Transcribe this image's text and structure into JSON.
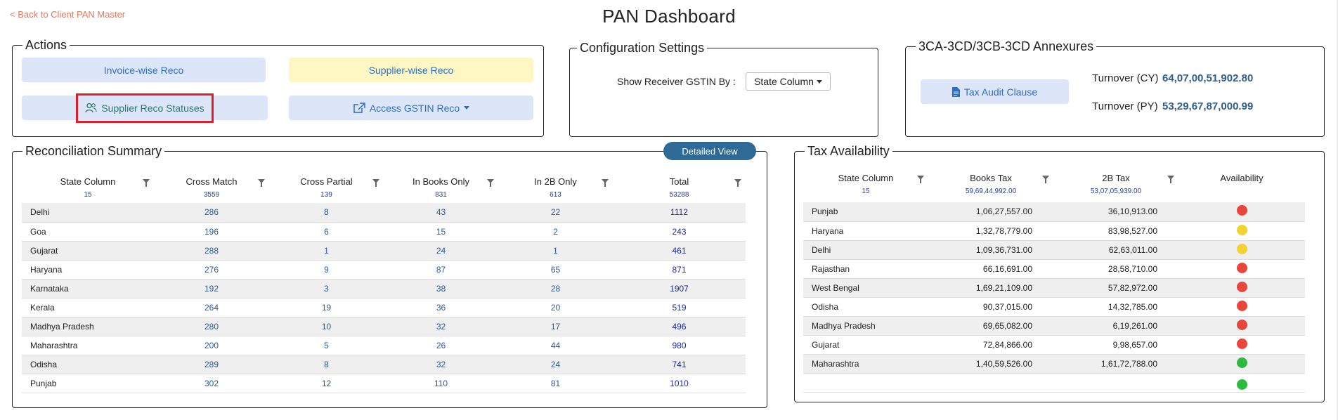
{
  "header": {
    "back_label": "< Back to Client PAN Master",
    "title": "PAN Dashboard"
  },
  "actions": {
    "legend": "Actions",
    "invoice_reco": "Invoice-wise Reco",
    "supplier_reco": "Supplier-wise Reco",
    "supplier_statuses": "Supplier Reco Statuses",
    "access_gstin": "Access GSTIN Reco"
  },
  "config": {
    "legend": "Configuration Settings",
    "label": "Show Receiver GSTIN By :",
    "selected": "State Column"
  },
  "annexures": {
    "legend": "3CA-3CD/3CB-3CD Annexures",
    "button": "Tax Audit Clause",
    "cy_label": "Turnover (CY)",
    "cy_value": "64,07,00,51,902.80",
    "py_label": "Turnover (PY)",
    "py_value": "53,29,67,87,000.99"
  },
  "reco": {
    "legend": "Reconciliation Summary",
    "detailed_view": "Detailed View",
    "columns": [
      {
        "label": "State Column",
        "count": "15"
      },
      {
        "label": "Cross Match",
        "count": "3559"
      },
      {
        "label": "Cross Partial",
        "count": "139"
      },
      {
        "label": "In Books Only",
        "count": "831"
      },
      {
        "label": "In 2B Only",
        "count": "613"
      },
      {
        "label": "Total",
        "count": "53288"
      }
    ],
    "rows": [
      [
        "Delhi",
        "286",
        "8",
        "43",
        "22",
        "1112"
      ],
      [
        "Goa",
        "196",
        "6",
        "15",
        "2",
        "243"
      ],
      [
        "Gujarat",
        "288",
        "1",
        "24",
        "1",
        "461"
      ],
      [
        "Haryana",
        "276",
        "9",
        "87",
        "65",
        "871"
      ],
      [
        "Karnataka",
        "192",
        "3",
        "38",
        "28",
        "1907"
      ],
      [
        "Kerala",
        "264",
        "19",
        "36",
        "20",
        "519"
      ],
      [
        "Madhya Pradesh",
        "280",
        "10",
        "32",
        "17",
        "496"
      ],
      [
        "Maharashtra",
        "200",
        "5",
        "26",
        "44",
        "980"
      ],
      [
        "Odisha",
        "289",
        "8",
        "32",
        "24",
        "741"
      ],
      [
        "Punjab",
        "302",
        "12",
        "110",
        "81",
        "1010"
      ]
    ]
  },
  "tax": {
    "legend": "Tax Availability",
    "columns": [
      {
        "label": "State Column",
        "count": "15"
      },
      {
        "label": "Books Tax",
        "count": "59,69,44,992.00"
      },
      {
        "label": "2B Tax",
        "count": "53,07,05,939.00"
      },
      {
        "label": "Availability",
        "count": ""
      }
    ],
    "rows": [
      {
        "state": "Punjab",
        "books": "1,06,27,557.00",
        "b2": "36,10,913.00",
        "status": "red"
      },
      {
        "state": "Haryana",
        "books": "1,32,78,779.00",
        "b2": "83,98,527.00",
        "status": "yellow"
      },
      {
        "state": "Delhi",
        "books": "1,09,36,731.00",
        "b2": "62,63,011.00",
        "status": "yellow"
      },
      {
        "state": "Rajasthan",
        "books": "66,16,691.00",
        "b2": "28,58,710.00",
        "status": "red"
      },
      {
        "state": "West Bengal",
        "books": "1,69,21,109.00",
        "b2": "57,82,972.00",
        "status": "red"
      },
      {
        "state": "Odisha",
        "books": "90,37,015.00",
        "b2": "14,32,785.00",
        "status": "red"
      },
      {
        "state": "Madhya Pradesh",
        "books": "69,65,082.00",
        "b2": "6,19,261.00",
        "status": "red"
      },
      {
        "state": "Gujarat",
        "books": "72,84,866.00",
        "b2": "9,98,657.00",
        "status": "red"
      },
      {
        "state": "Maharashtra",
        "books": "1,40,59,526.00",
        "b2": "1,61,72,788.00",
        "status": "green"
      }
    ],
    "status_colors": {
      "red": "#e8463a",
      "yellow": "#f5d132",
      "green": "#2dbb3e"
    }
  }
}
